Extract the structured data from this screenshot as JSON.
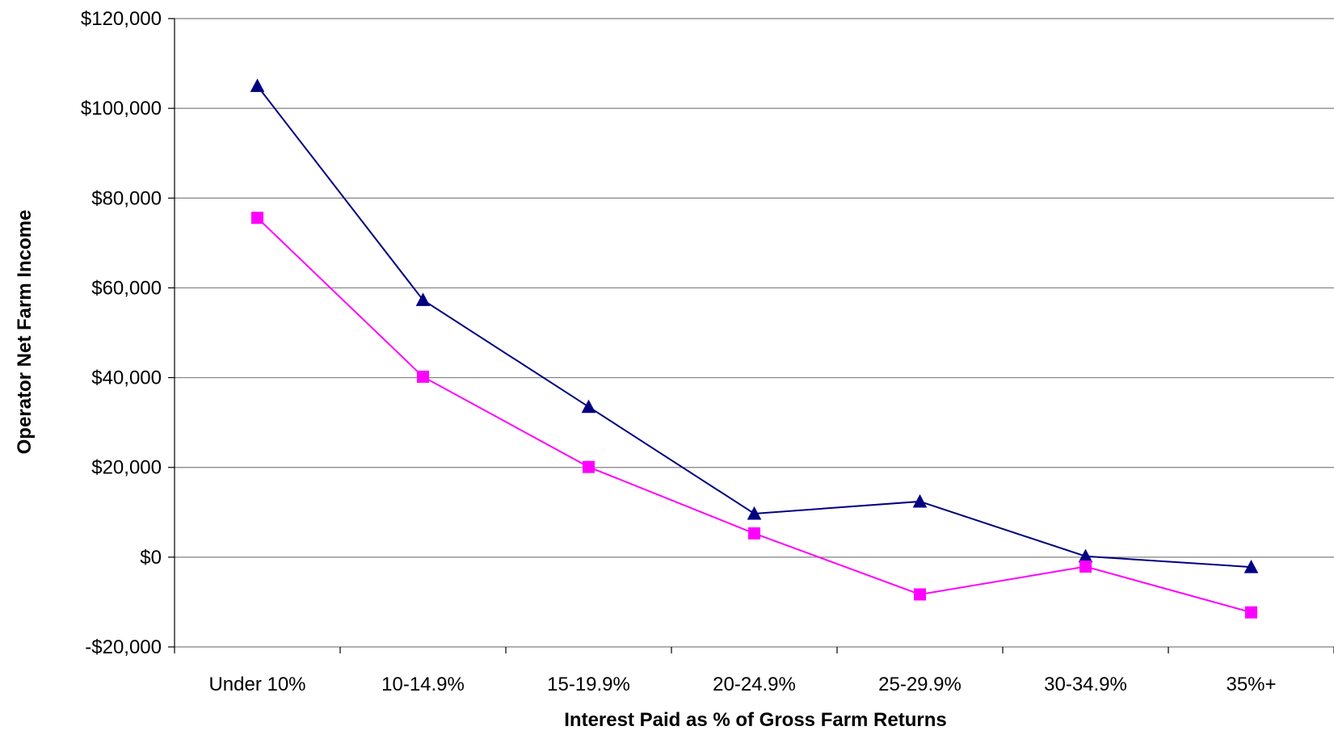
{
  "chart_data": {
    "type": "line",
    "title": "",
    "xlabel": "Interest Paid as % of Gross Farm Returns",
    "ylabel": "Operator Net Farm Income",
    "categories": [
      "Under 10%",
      "10-14.9%",
      "15-19.9%",
      "20-24.9%",
      "25-29.9%",
      "30-34.9%",
      "35%+"
    ],
    "ylim": [
      -20000,
      120000
    ],
    "yticks": [
      -20000,
      0,
      20000,
      40000,
      60000,
      80000,
      100000,
      120000
    ],
    "ytick_labels": [
      "-$20,000",
      "$0",
      "$20,000",
      "$40,000",
      "$60,000",
      "$80,000",
      "$100,000",
      "$120,000"
    ],
    "grid": true,
    "legend": "none",
    "series": [
      {
        "color": "#000080",
        "marker": "triangle",
        "values": [
          105000,
          57300,
          33500,
          9700,
          12400,
          200,
          -2200
        ]
      },
      {
        "color": "#FF00FF",
        "marker": "square",
        "values": [
          75600,
          40200,
          20100,
          5300,
          -8300,
          -2100,
          -12300
        ]
      }
    ]
  }
}
